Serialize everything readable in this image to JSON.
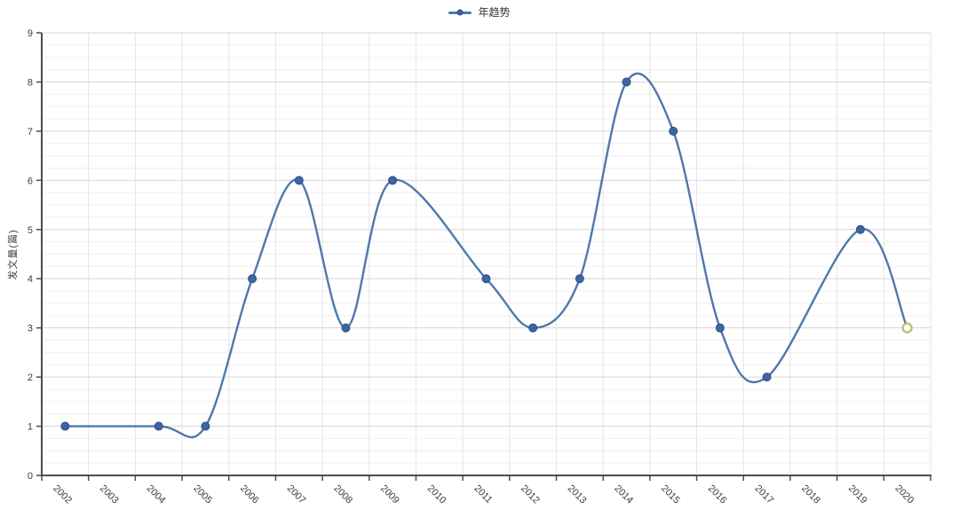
{
  "legend": {
    "label": "年趋势",
    "position": "top-center"
  },
  "y_axis": {
    "title": "发文量(篇)",
    "min": 0,
    "max": 9,
    "major_interval": 1,
    "minor_interval": 0.25
  },
  "x_axis": {
    "label_rotation_deg": 45
  },
  "chart_data": {
    "type": "line",
    "smooth": true,
    "title": "",
    "xlabel": "",
    "ylabel": "发文量(篇)",
    "ylim": [
      0,
      9
    ],
    "grid": true,
    "legend_position": "top-center",
    "categories": [
      "2002",
      "2003",
      "2004",
      "2005",
      "2006",
      "2007",
      "2008",
      "2009",
      "2010",
      "2011",
      "2012",
      "2013",
      "2014",
      "2015",
      "2016",
      "2017",
      "2018",
      "2019",
      "2020"
    ],
    "series": [
      {
        "name": "年趋势",
        "values": [
          1,
          null,
          1,
          1,
          4,
          6,
          3,
          6,
          null,
          4,
          3,
          4,
          8,
          7,
          3,
          2,
          null,
          5,
          3
        ]
      }
    ],
    "note": "null values have no marker; the smooth curve interpolates across them",
    "predicted": {
      "year": "2020",
      "value": 3,
      "style": "hollow-circle"
    }
  },
  "colors": {
    "line": "#4f78ab",
    "marker_fill": "#3d64a4",
    "marker_stroke": "#2e4f86",
    "predicted_stroke": "#b2c364",
    "predicted_fill": "#ffffff",
    "grid_major": "#d6d6d6",
    "grid_minor": "#f0f0f0",
    "grid_vertical": "#e3e3e3",
    "axis": "#4d4d4d",
    "tick_text": "#3c3c3c",
    "background": "#ffffff"
  }
}
